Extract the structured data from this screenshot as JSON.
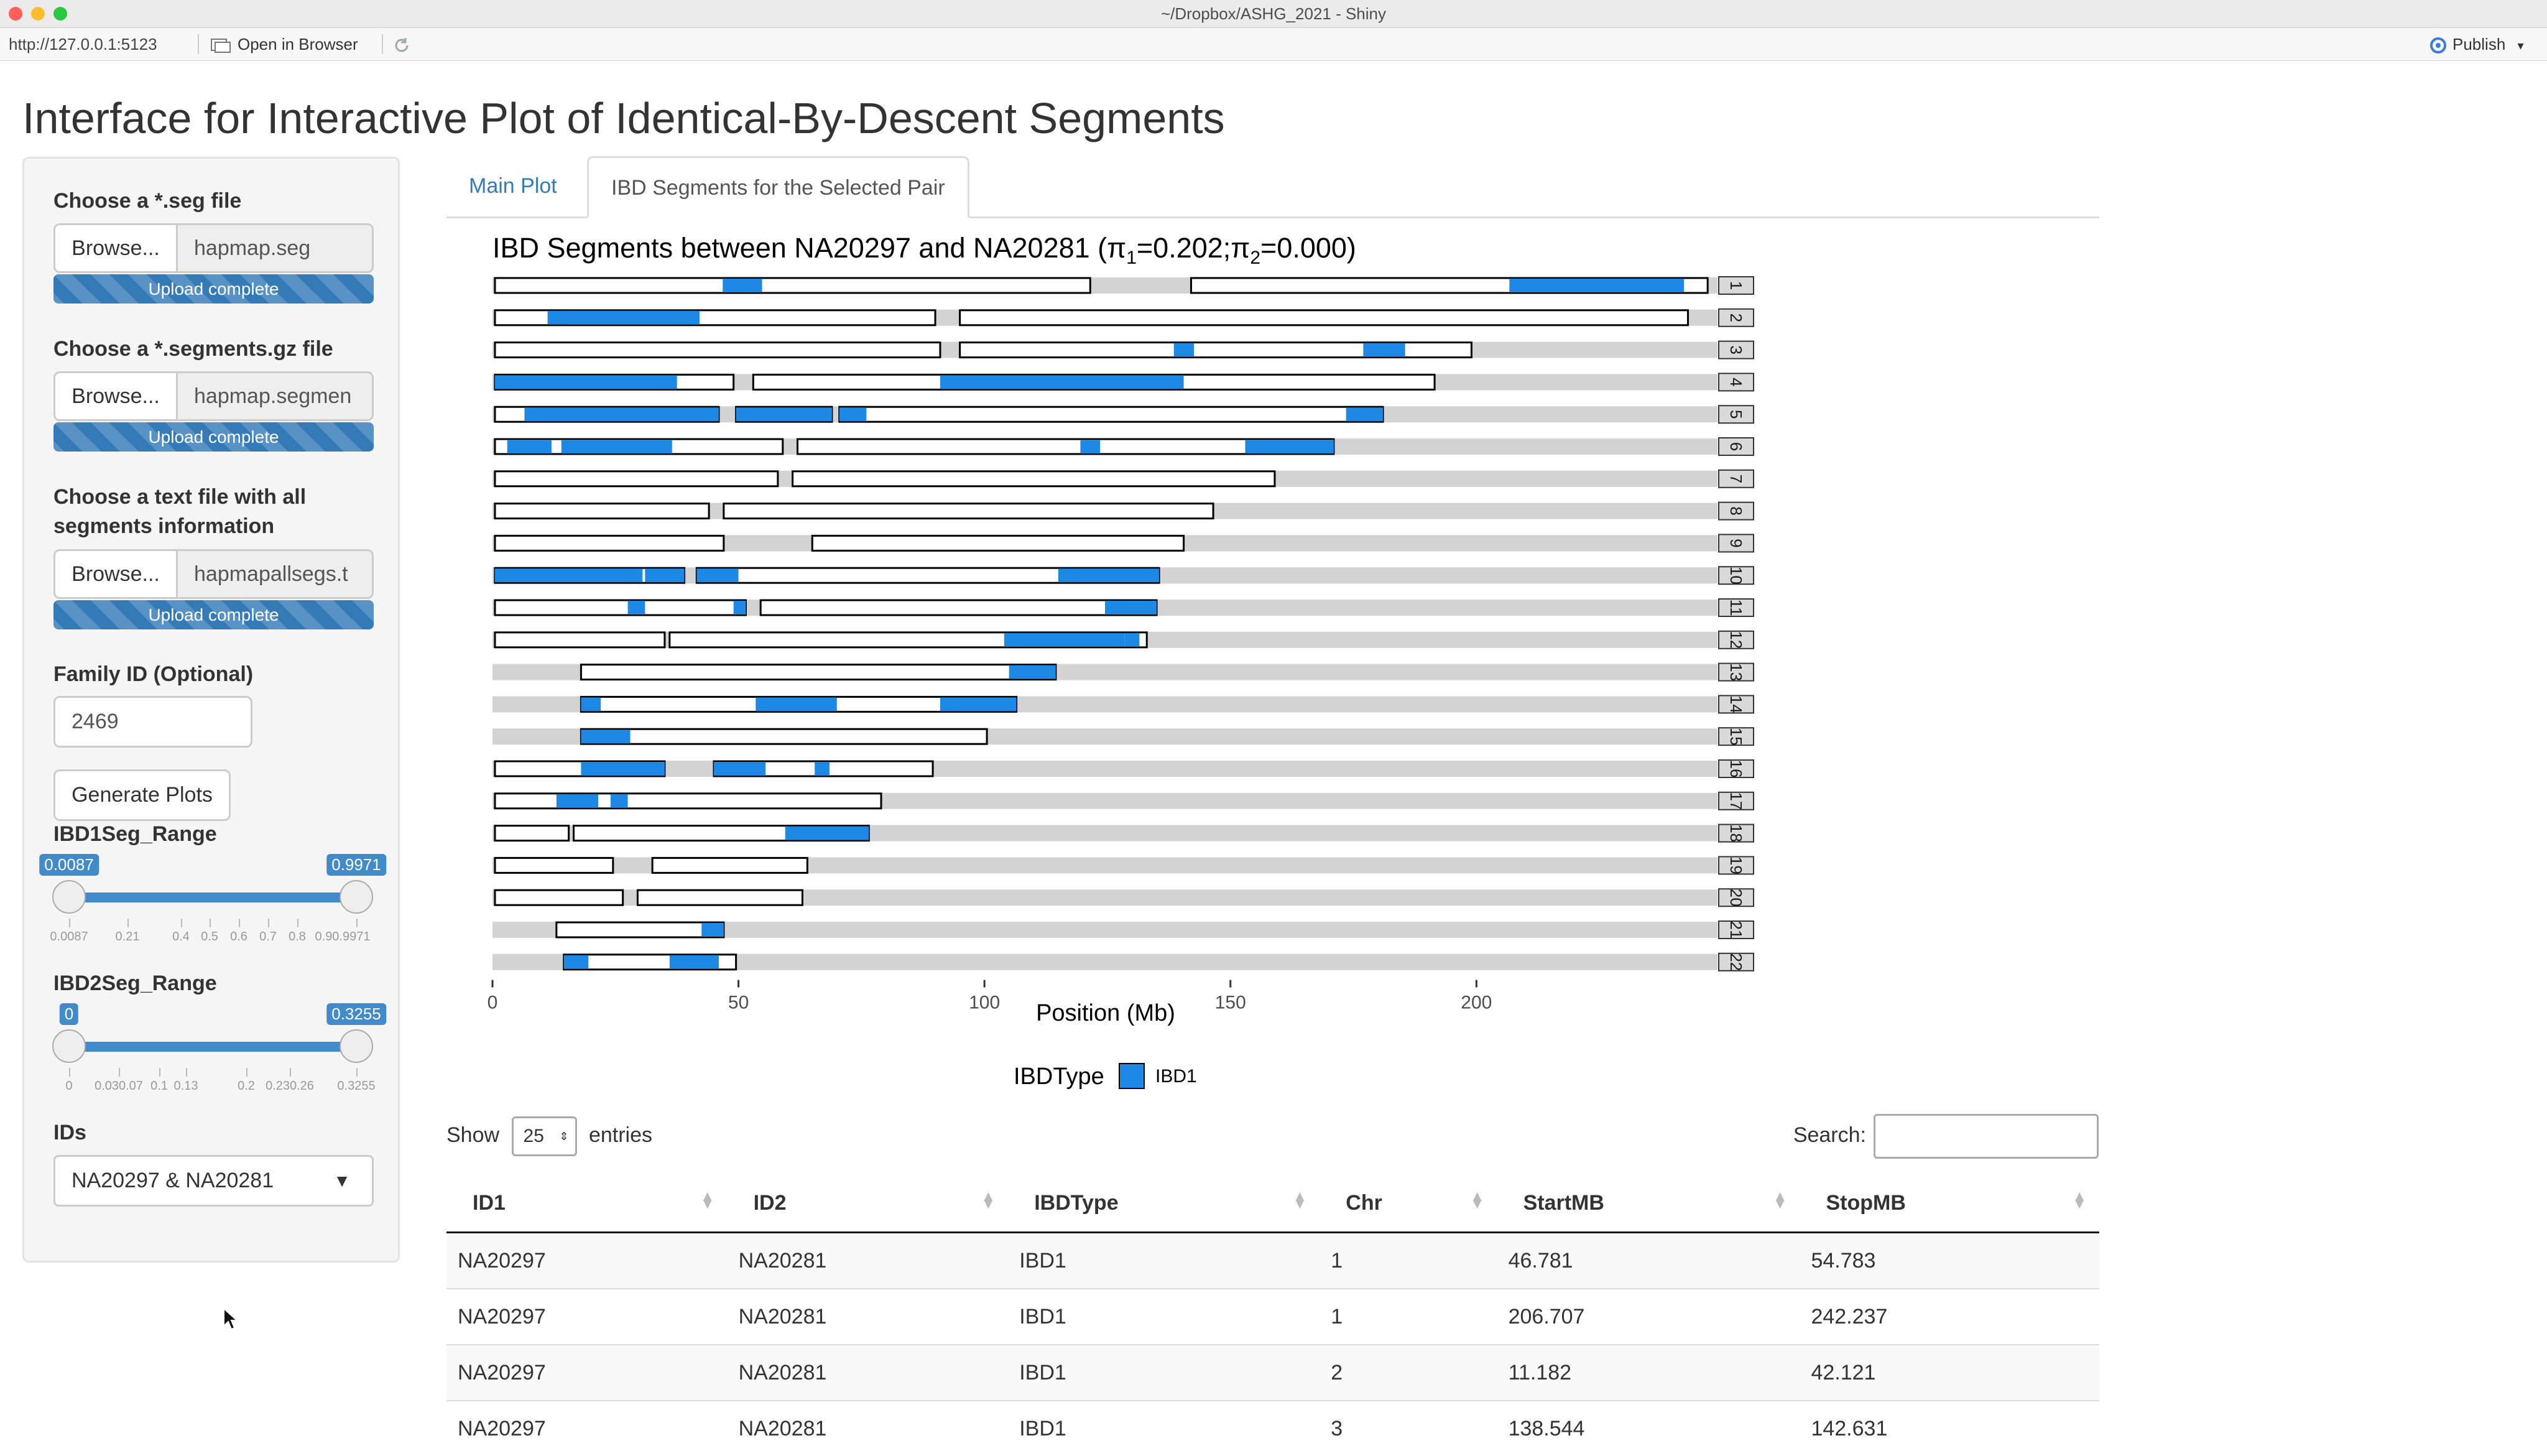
{
  "window": {
    "title": "~/Dropbox/ASHG_2021 - Shiny"
  },
  "toolbar": {
    "url": "http://127.0.0.1:5123",
    "open_browser": "Open in Browser",
    "publish": "Publish"
  },
  "page_title": "Interface for Interactive Plot of Identical-By-Descent Segments",
  "sidebar": {
    "seg_label": "Choose a *.seg file",
    "seg_file": "hapmap.seg",
    "segments_label": "Choose a *.segments.gz file",
    "segments_file": "hapmap.segmen",
    "allsegs_label_line1": "Choose a text file with all",
    "allsegs_label_line2": "segments information",
    "allsegs_file": "hapmapallsegs.t",
    "browse": "Browse...",
    "upload_complete": "Upload complete",
    "family_label": "Family ID (Optional)",
    "family_value": "2469",
    "generate": "Generate Plots",
    "ibd1_label": "IBD1Seg_Range",
    "ibd1_min": "0.0087",
    "ibd1_max": "0.9971",
    "ibd1_ticks": [
      "0.0087",
      "0.21",
      "0.4",
      "0.5",
      "0.6",
      "0.7",
      "0.8",
      "0.90.9971"
    ],
    "ibd2_label": "IBD2Seg_Range",
    "ibd2_min": "0",
    "ibd2_max": "0.3255",
    "ibd2_ticks": [
      "0",
      "0.030.07",
      "0.1",
      "0.13",
      "0.2",
      "0.230.26",
      "0.3255"
    ],
    "ids_label": "IDs",
    "ids_value": "NA20297 & NA20281"
  },
  "tabs": [
    {
      "label": "Main Plot",
      "active": false
    },
    {
      "label": "IBD Segments for the Selected Pair",
      "active": true
    }
  ],
  "chart_data": {
    "type": "bar",
    "title_prefix": "IBD Segments between NA20297 and NA20281 (",
    "title_pi1": "π",
    "title_sub1": "1",
    "title_val1": "=0.202;",
    "title_pi2": "π",
    "title_sub2": "2",
    "title_val2": "=0.000)",
    "xlabel": "Position (Mb)",
    "xticks": [
      "0",
      "50",
      "100",
      "150",
      "200"
    ],
    "xlim": [
      0,
      249
    ],
    "legend_title": "IBDType",
    "legend_item": "IBD1",
    "ibd1_color": "#1e88e5",
    "bg_color": "#d3d3d3",
    "chromosomes": [
      {
        "chr": "1",
        "length": 249,
        "segs": [
          [
            0.5,
            121.5
          ],
          [
            142,
            247
          ]
        ],
        "ibd1": [
          [
            46.8,
            54.8
          ],
          [
            206.7,
            242.2
          ]
        ]
      },
      {
        "chr": "2",
        "length": 243,
        "segs": [
          [
            0.5,
            90
          ],
          [
            95,
            243
          ]
        ],
        "ibd1": [
          [
            11.2,
            42.1
          ]
        ]
      },
      {
        "chr": "3",
        "length": 198,
        "segs": [
          [
            0.5,
            91
          ],
          [
            95,
            199
          ]
        ],
        "ibd1": [
          [
            138.5,
            142.6
          ],
          [
            177,
            185.5
          ]
        ]
      },
      {
        "chr": "4",
        "length": 191,
        "segs": [
          [
            0.5,
            49
          ],
          [
            53,
            191.5
          ]
        ],
        "ibd1": [
          [
            0.5,
            37.5
          ],
          [
            91,
            140.5
          ]
        ]
      },
      {
        "chr": "5",
        "length": 181,
        "segs": [
          [
            0.5,
            46
          ],
          [
            49.5,
            69
          ],
          [
            70.5,
            181
          ]
        ],
        "ibd1": [
          [
            6.5,
            46
          ],
          [
            49.5,
            69
          ],
          [
            70.5,
            76
          ],
          [
            173.5,
            181
          ]
        ]
      },
      {
        "chr": "6",
        "length": 171,
        "segs": [
          [
            0.5,
            59
          ],
          [
            62,
            171
          ]
        ],
        "ibd1": [
          [
            3,
            12
          ],
          [
            14,
            36.5
          ],
          [
            119.5,
            123.5
          ],
          [
            153,
            171
          ]
        ]
      },
      {
        "chr": "7",
        "length": 159,
        "segs": [
          [
            0.5,
            58
          ],
          [
            61,
            159
          ]
        ],
        "ibd1": []
      },
      {
        "chr": "8",
        "length": 146,
        "segs": [
          [
            0.5,
            44
          ],
          [
            47,
            146.5
          ]
        ],
        "ibd1": []
      },
      {
        "chr": "9",
        "length": 141,
        "segs": [
          [
            0.5,
            47
          ],
          [
            65,
            140.5
          ]
        ],
        "ibd1": []
      },
      {
        "chr": "10",
        "length": 135,
        "segs": [
          [
            0.5,
            39
          ],
          [
            41.5,
            135.5
          ]
        ],
        "ibd1": [
          [
            0.5,
            30.5
          ],
          [
            31,
            39
          ],
          [
            41.5,
            50
          ],
          [
            115,
            135.5
          ]
        ]
      },
      {
        "chr": "11",
        "length": 135,
        "segs": [
          [
            0.5,
            51.5
          ],
          [
            54.5,
            135
          ]
        ],
        "ibd1": [
          [
            27.5,
            31
          ],
          [
            49,
            51.5
          ],
          [
            124.5,
            135
          ]
        ]
      },
      {
        "chr": "12",
        "length": 133,
        "segs": [
          [
            0.5,
            35
          ],
          [
            36,
            133
          ]
        ],
        "ibd1": [
          [
            104,
            128.5
          ],
          [
            128.5,
            131.5
          ]
        ]
      },
      {
        "chr": "13",
        "length": 115,
        "segs": [
          [
            18,
            114.5
          ]
        ],
        "ibd1": [
          [
            105,
            114.5
          ]
        ]
      },
      {
        "chr": "14",
        "length": 107,
        "segs": [
          [
            18,
            106.5
          ]
        ],
        "ibd1": [
          [
            18,
            22
          ],
          [
            53.5,
            70
          ],
          [
            91,
            106.5
          ]
        ]
      },
      {
        "chr": "15",
        "length": 102,
        "segs": [
          [
            18,
            100.5
          ]
        ],
        "ibd1": [
          [
            18,
            28
          ]
        ]
      },
      {
        "chr": "16",
        "length": 90,
        "segs": [
          [
            0.5,
            35
          ],
          [
            45,
            89.5
          ]
        ],
        "ibd1": [
          [
            18,
            35
          ],
          [
            45,
            55.5
          ],
          [
            65.5,
            68.5
          ]
        ]
      },
      {
        "chr": "17",
        "length": 81,
        "segs": [
          [
            0.5,
            79
          ]
        ],
        "ibd1": [
          [
            13,
            21.5
          ],
          [
            24,
            27.5
          ]
        ]
      },
      {
        "chr": "18",
        "length": 78,
        "segs": [
          [
            0.5,
            15.5
          ],
          [
            16.5,
            76.5
          ]
        ],
        "ibd1": [
          [
            59.5,
            76.5
          ]
        ]
      },
      {
        "chr": "19",
        "length": 59,
        "segs": [
          [
            0.5,
            24.5
          ],
          [
            32.5,
            64
          ]
        ],
        "ibd1": []
      },
      {
        "chr": "20",
        "length": 64,
        "segs": [
          [
            0.5,
            26.5
          ],
          [
            29.5,
            63
          ]
        ],
        "ibd1": []
      },
      {
        "chr": "21",
        "length": 48,
        "segs": [
          [
            13,
            47
          ]
        ],
        "ibd1": [
          [
            42.5,
            47
          ]
        ]
      },
      {
        "chr": "22",
        "length": 51,
        "segs": [
          [
            14.5,
            49.5
          ]
        ],
        "ibd1": [
          [
            14.5,
            19.5
          ],
          [
            36,
            46
          ]
        ]
      }
    ]
  },
  "table": {
    "show_label": "Show",
    "show_value": "25",
    "entries_label": "entries",
    "search_label": "Search:",
    "columns": [
      "ID1",
      "ID2",
      "IBDType",
      "Chr",
      "StartMB",
      "StopMB"
    ],
    "rows": [
      [
        "NA20297",
        "NA20281",
        "IBD1",
        "1",
        "46.781",
        "54.783"
      ],
      [
        "NA20297",
        "NA20281",
        "IBD1",
        "1",
        "206.707",
        "242.237"
      ],
      [
        "NA20297",
        "NA20281",
        "IBD1",
        "2",
        "11.182",
        "42.121"
      ],
      [
        "NA20297",
        "NA20281",
        "IBD1",
        "3",
        "138.544",
        "142.631"
      ]
    ]
  }
}
